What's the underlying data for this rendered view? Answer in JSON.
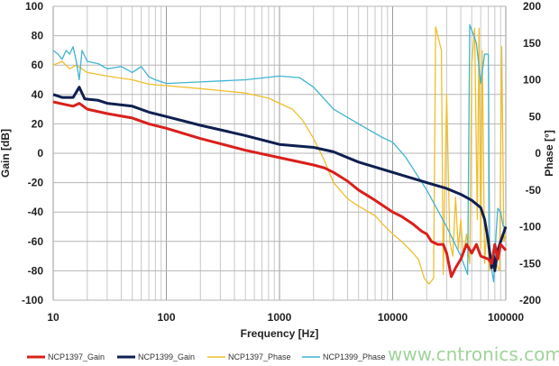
{
  "chart_data": {
    "type": "line",
    "xlabel": "Frequency [Hz]",
    "ylabel": "Gain [dB]",
    "y2label": "Phase [°]",
    "xscale": "log",
    "xlim": [
      10,
      100000
    ],
    "ylim": [
      -100,
      100
    ],
    "y2lim": [
      -200,
      200
    ],
    "x_ticks": [
      "10",
      "100",
      "1000",
      "10000",
      "100000"
    ],
    "y_ticks": [
      "100",
      "80",
      "60",
      "40",
      "20",
      "0",
      "-20",
      "-40",
      "-60",
      "-80",
      "-100"
    ],
    "y2_ticks": [
      "200",
      "150",
      "100",
      "50",
      "0",
      "-50",
      "-100",
      "-150",
      "-200"
    ],
    "grid": true,
    "legend_position": "bottom",
    "series": [
      {
        "name": "NCP1397_Gain",
        "axis": "left",
        "color": "#d9201c",
        "points": [
          [
            10,
            35
          ],
          [
            13,
            33
          ],
          [
            15,
            32
          ],
          [
            17,
            34
          ],
          [
            20,
            30
          ],
          [
            30,
            27
          ],
          [
            50,
            24
          ],
          [
            70,
            20
          ],
          [
            100,
            17
          ],
          [
            200,
            10
          ],
          [
            500,
            2
          ],
          [
            1000,
            -3
          ],
          [
            2000,
            -8
          ],
          [
            2500,
            -10
          ],
          [
            3000,
            -13
          ],
          [
            4000,
            -19
          ],
          [
            5000,
            -25
          ],
          [
            7000,
            -32
          ],
          [
            10000,
            -40
          ],
          [
            12000,
            -43
          ],
          [
            15000,
            -48
          ],
          [
            18000,
            -53
          ],
          [
            20000,
            -55
          ],
          [
            22000,
            -60
          ],
          [
            25000,
            -62
          ],
          [
            28000,
            -62
          ],
          [
            30000,
            -68
          ],
          [
            33000,
            -84
          ],
          [
            36000,
            -78
          ],
          [
            40000,
            -72
          ],
          [
            45000,
            -62
          ],
          [
            50000,
            -68
          ],
          [
            55000,
            -62
          ],
          [
            60000,
            -70
          ],
          [
            70000,
            -72
          ],
          [
            75000,
            -75
          ],
          [
            80000,
            -62
          ],
          [
            85000,
            -72
          ],
          [
            90000,
            -62
          ],
          [
            100000,
            -66
          ]
        ]
      },
      {
        "name": "NCP1399_Gain",
        "axis": "left",
        "color": "#0f1f4f",
        "points": [
          [
            10,
            40
          ],
          [
            12,
            38
          ],
          [
            15,
            38
          ],
          [
            17,
            45
          ],
          [
            19,
            37
          ],
          [
            25,
            36
          ],
          [
            30,
            34
          ],
          [
            50,
            32
          ],
          [
            70,
            28
          ],
          [
            100,
            25
          ],
          [
            200,
            19
          ],
          [
            500,
            12
          ],
          [
            1000,
            6
          ],
          [
            2000,
            4
          ],
          [
            3000,
            1
          ],
          [
            5000,
            -6
          ],
          [
            10000,
            -13
          ],
          [
            20000,
            -20
          ],
          [
            30000,
            -24
          ],
          [
            40000,
            -28
          ],
          [
            50000,
            -32
          ],
          [
            60000,
            -37
          ],
          [
            65000,
            -45
          ],
          [
            70000,
            -60
          ],
          [
            75000,
            -78
          ],
          [
            78000,
            -70
          ],
          [
            80000,
            -80
          ],
          [
            85000,
            -66
          ],
          [
            90000,
            -60
          ],
          [
            100000,
            -50
          ]
        ]
      },
      {
        "name": "NCP1397_Phase",
        "axis": "right",
        "color": "#f0be2c",
        "points": [
          [
            10,
            120
          ],
          [
            12,
            125
          ],
          [
            14,
            115
          ],
          [
            16,
            120
          ],
          [
            20,
            110
          ],
          [
            30,
            105
          ],
          [
            50,
            100
          ],
          [
            70,
            94
          ],
          [
            100,
            92
          ],
          [
            200,
            88
          ],
          [
            500,
            82
          ],
          [
            800,
            75
          ],
          [
            1000,
            68
          ],
          [
            1300,
            60
          ],
          [
            1600,
            45
          ],
          [
            2000,
            20
          ],
          [
            2500,
            -10
          ],
          [
            3000,
            -40
          ],
          [
            4000,
            -62
          ],
          [
            5000,
            -72
          ],
          [
            7000,
            -85
          ],
          [
            8000,
            -95
          ],
          [
            10000,
            -110
          ],
          [
            12000,
            -120
          ],
          [
            15000,
            -135
          ],
          [
            17000,
            -145
          ],
          [
            19000,
            -170
          ],
          [
            21000,
            -178
          ],
          [
            23000,
            -170
          ],
          [
            24000,
            172
          ],
          [
            26000,
            150
          ],
          [
            27000,
            140
          ],
          [
            28000,
            -165
          ],
          [
            30000,
            80
          ],
          [
            32000,
            -120
          ],
          [
            34000,
            -140
          ],
          [
            36000,
            -60
          ],
          [
            38000,
            -130
          ],
          [
            40000,
            -90
          ],
          [
            42000,
            -140
          ],
          [
            45000,
            -110
          ],
          [
            48000,
            -150
          ],
          [
            50000,
            120
          ],
          [
            53000,
            170
          ],
          [
            56000,
            -90
          ],
          [
            58000,
            170
          ],
          [
            60000,
            -130
          ],
          [
            62000,
            140
          ],
          [
            65000,
            -150
          ],
          [
            68000,
            -100
          ],
          [
            72000,
            -160
          ],
          [
            78000,
            -130
          ],
          [
            82000,
            -150
          ],
          [
            88000,
            -160
          ],
          [
            92000,
            145
          ],
          [
            96000,
            -120
          ],
          [
            100000,
            -110
          ]
        ]
      },
      {
        "name": "NCP1399_Phase",
        "axis": "right",
        "color": "#3fb3d2",
        "points": [
          [
            10,
            140
          ],
          [
            11,
            135
          ],
          [
            12,
            128
          ],
          [
            13,
            140
          ],
          [
            14,
            135
          ],
          [
            15,
            145
          ],
          [
            16,
            125
          ],
          [
            17,
            100
          ],
          [
            18,
            140
          ],
          [
            20,
            125
          ],
          [
            25,
            122
          ],
          [
            30,
            115
          ],
          [
            40,
            118
          ],
          [
            50,
            110
          ],
          [
            60,
            118
          ],
          [
            70,
            104
          ],
          [
            80,
            100
          ],
          [
            100,
            95
          ],
          [
            200,
            97
          ],
          [
            500,
            100
          ],
          [
            1000,
            105
          ],
          [
            1500,
            103
          ],
          [
            2000,
            90
          ],
          [
            3000,
            60
          ],
          [
            5000,
            40
          ],
          [
            8000,
            22
          ],
          [
            10000,
            15
          ],
          [
            13000,
            -5
          ],
          [
            15000,
            -20
          ],
          [
            20000,
            -50
          ],
          [
            30000,
            -100
          ],
          [
            40000,
            -140
          ],
          [
            46000,
            -165
          ],
          [
            48000,
            175
          ],
          [
            55000,
            150
          ],
          [
            60000,
            95
          ],
          [
            65000,
            135
          ],
          [
            70000,
            135
          ],
          [
            72000,
            -140
          ],
          [
            78000,
            -175
          ],
          [
            82000,
            -110
          ],
          [
            85000,
            -75
          ],
          [
            90000,
            -80
          ],
          [
            95000,
            -100
          ],
          [
            100000,
            -100
          ]
        ]
      }
    ]
  },
  "watermark": "www.cntronics.com"
}
